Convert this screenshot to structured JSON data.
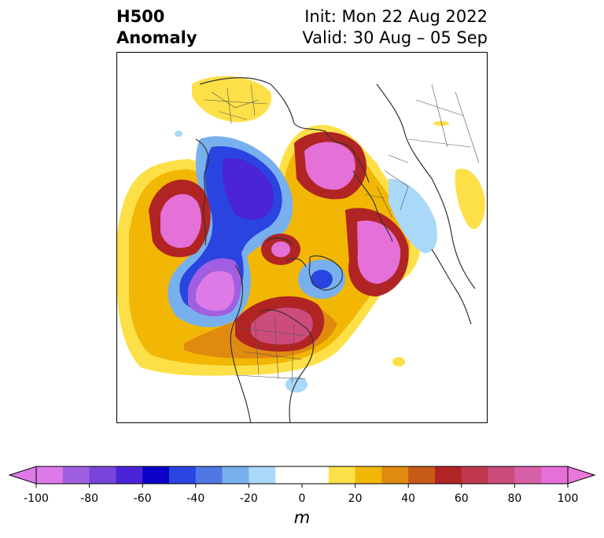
{
  "title": {
    "left_line1": "H500",
    "left_line2": "Anomaly",
    "right_line1": "Init: Mon 22 Aug 2022",
    "right_line2": "Valid: 30 Aug – 05 Sep"
  },
  "colorbar": {
    "unit": "m",
    "levels": [
      -100,
      -90,
      -80,
      -70,
      -60,
      -50,
      -40,
      -30,
      -20,
      -10,
      10,
      20,
      30,
      40,
      50,
      60,
      70,
      80,
      90,
      100
    ],
    "colors": [
      "#dd7ae8",
      "#a05fe0",
      "#7a45db",
      "#4a24d6",
      "#0a00c8",
      "#2a44e0",
      "#5078e4",
      "#78b0ee",
      "#aad8f8",
      "#ffffff",
      "#fde047",
      "#f2b705",
      "#e08a10",
      "#c85a18",
      "#b02424",
      "#c03850",
      "#cc4c7c",
      "#d860a8",
      "#e470d8"
    ],
    "extend_low_color": "#dd7ae8",
    "extend_high_color": "#e878d8",
    "ticks": [
      "-100",
      "-80",
      "-60",
      "-40",
      "-20",
      "0",
      "20",
      "40",
      "60",
      "80",
      "100"
    ]
  }
}
